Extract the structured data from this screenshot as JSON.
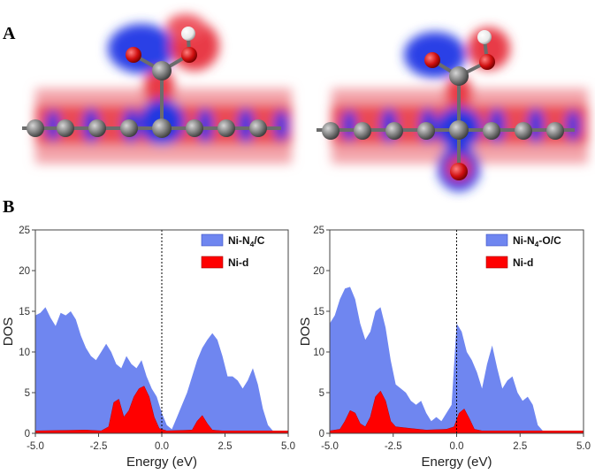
{
  "figure": {
    "panel_a_label": "A",
    "panel_b_label": "B"
  },
  "colors": {
    "tdos": "#6f86f0",
    "ni_d": "#ff0000",
    "depletion": "#e8303a",
    "accumulation": "#1e32d8",
    "atom_c": "#7a7a7a",
    "atom_o": "#d01010",
    "atom_h": "#ffffff"
  },
  "chart_data": [
    {
      "type": "area",
      "legend": [
        "Ni-N4/C",
        "Ni-d"
      ],
      "legend_display": {
        "tdos_main": "Ni-N",
        "tdos_sub": "4",
        "tdos_tail": "/C",
        "ni_d": "Ni-d"
      },
      "xlabel": "Energy (eV)",
      "ylabel": "DOS",
      "xlim": [
        -5,
        5
      ],
      "ylim": [
        0,
        25
      ],
      "xtick_labels": [
        "-5.0",
        "-2.5",
        "0.0",
        "2.5",
        "5.0"
      ],
      "ytick_labels": [
        "0",
        "5",
        "10",
        "15",
        "20",
        "25"
      ],
      "fermi_level": 0.0,
      "series": [
        {
          "name": "Ni-N4/C",
          "points": [
            [
              -5.0,
              14.5
            ],
            [
              -4.8,
              14.8
            ],
            [
              -4.6,
              15.5
            ],
            [
              -4.4,
              14.2
            ],
            [
              -4.2,
              13.2
            ],
            [
              -4.0,
              14.8
            ],
            [
              -3.8,
              14.5
            ],
            [
              -3.6,
              15.0
            ],
            [
              -3.4,
              14.0
            ],
            [
              -3.2,
              12.0
            ],
            [
              -3.0,
              10.5
            ],
            [
              -2.8,
              9.5
            ],
            [
              -2.6,
              9.0
            ],
            [
              -2.4,
              10.0
            ],
            [
              -2.2,
              11.0
            ],
            [
              -2.0,
              10.0
            ],
            [
              -1.8,
              8.5
            ],
            [
              -1.6,
              8.0
            ],
            [
              -1.4,
              9.5
            ],
            [
              -1.2,
              8.5
            ],
            [
              -1.0,
              8.0
            ],
            [
              -0.8,
              9.0
            ],
            [
              -0.6,
              7.0
            ],
            [
              -0.4,
              5.5
            ],
            [
              -0.2,
              4.5
            ],
            [
              0.0,
              2.5
            ],
            [
              0.2,
              1.0
            ],
            [
              0.4,
              0.5
            ],
            [
              0.6,
              2.0
            ],
            [
              0.8,
              3.5
            ],
            [
              1.0,
              5.0
            ],
            [
              1.2,
              7.0
            ],
            [
              1.4,
              9.0
            ],
            [
              1.6,
              10.5
            ],
            [
              1.8,
              11.5
            ],
            [
              2.0,
              12.3
            ],
            [
              2.2,
              11.5
            ],
            [
              2.4,
              9.5
            ],
            [
              2.6,
              7.0
            ],
            [
              2.8,
              7.0
            ],
            [
              3.0,
              6.5
            ],
            [
              3.2,
              5.5
            ],
            [
              3.4,
              6.5
            ],
            [
              3.6,
              8.0
            ],
            [
              3.8,
              6.0
            ],
            [
              4.0,
              3.0
            ],
            [
              4.2,
              1.0
            ],
            [
              4.4,
              0.3
            ],
            [
              4.6,
              0.2
            ],
            [
              5.0,
              0.2
            ]
          ]
        },
        {
          "name": "Ni-d",
          "points": [
            [
              -5.0,
              0.3
            ],
            [
              -3.0,
              0.4
            ],
            [
              -2.4,
              0.3
            ],
            [
              -2.1,
              0.8
            ],
            [
              -1.9,
              3.8
            ],
            [
              -1.7,
              4.2
            ],
            [
              -1.5,
              2.0
            ],
            [
              -1.3,
              2.8
            ],
            [
              -1.1,
              4.5
            ],
            [
              -0.9,
              5.5
            ],
            [
              -0.7,
              5.8
            ],
            [
              -0.5,
              4.5
            ],
            [
              -0.3,
              2.0
            ],
            [
              -0.1,
              0.6
            ],
            [
              0.2,
              0.3
            ],
            [
              1.2,
              0.4
            ],
            [
              1.4,
              1.5
            ],
            [
              1.6,
              2.2
            ],
            [
              1.8,
              1.2
            ],
            [
              2.0,
              0.4
            ],
            [
              2.4,
              0.3
            ],
            [
              5.0,
              0.3
            ]
          ]
        }
      ]
    },
    {
      "type": "area",
      "legend": [
        "Ni-N4-O/C",
        "Ni-d"
      ],
      "legend_display": {
        "tdos_main": "Ni-N",
        "tdos_sub": "4",
        "tdos_tail": "-O/C",
        "ni_d": "Ni-d"
      },
      "xlabel": "Energy (eV)",
      "ylabel": "DOS",
      "xlim": [
        -5,
        5
      ],
      "ylim": [
        0,
        25
      ],
      "xtick_labels": [
        "-5.0",
        "-2.5",
        "0.0",
        "2.5",
        "5.0"
      ],
      "ytick_labels": [
        "0",
        "5",
        "10",
        "15",
        "20",
        "25"
      ],
      "fermi_level": 0.0,
      "series": [
        {
          "name": "Ni-N4-O/C",
          "points": [
            [
              -5.0,
              13.5
            ],
            [
              -4.8,
              14.5
            ],
            [
              -4.6,
              16.5
            ],
            [
              -4.4,
              17.8
            ],
            [
              -4.2,
              18.0
            ],
            [
              -4.0,
              16.5
            ],
            [
              -3.8,
              13.5
            ],
            [
              -3.6,
              11.5
            ],
            [
              -3.4,
              12.5
            ],
            [
              -3.2,
              15.0
            ],
            [
              -3.0,
              15.5
            ],
            [
              -2.8,
              13.0
            ],
            [
              -2.6,
              9.0
            ],
            [
              -2.4,
              6.0
            ],
            [
              -2.2,
              5.5
            ],
            [
              -2.0,
              5.0
            ],
            [
              -1.8,
              4.0
            ],
            [
              -1.6,
              3.5
            ],
            [
              -1.4,
              4.0
            ],
            [
              -1.2,
              2.5
            ],
            [
              -1.0,
              1.5
            ],
            [
              -0.8,
              2.0
            ],
            [
              -0.6,
              1.5
            ],
            [
              -0.4,
              2.5
            ],
            [
              -0.2,
              3.5
            ],
            [
              0.0,
              13.5
            ],
            [
              0.2,
              12.5
            ],
            [
              0.4,
              10.0
            ],
            [
              0.6,
              9.0
            ],
            [
              0.8,
              7.5
            ],
            [
              1.0,
              5.5
            ],
            [
              1.2,
              8.5
            ],
            [
              1.4,
              10.8
            ],
            [
              1.6,
              8.0
            ],
            [
              1.8,
              5.5
            ],
            [
              2.0,
              6.5
            ],
            [
              2.2,
              7.0
            ],
            [
              2.4,
              5.0
            ],
            [
              2.6,
              4.0
            ],
            [
              2.8,
              4.5
            ],
            [
              3.0,
              3.5
            ],
            [
              3.2,
              1.0
            ],
            [
              3.4,
              0.3
            ],
            [
              5.0,
              0.2
            ]
          ]
        },
        {
          "name": "Ni-d",
          "points": [
            [
              -5.0,
              0.3
            ],
            [
              -4.6,
              0.5
            ],
            [
              -4.4,
              1.5
            ],
            [
              -4.2,
              2.8
            ],
            [
              -4.0,
              2.5
            ],
            [
              -3.8,
              1.2
            ],
            [
              -3.6,
              0.8
            ],
            [
              -3.4,
              2.0
            ],
            [
              -3.2,
              4.5
            ],
            [
              -3.0,
              5.2
            ],
            [
              -2.8,
              4.0
            ],
            [
              -2.6,
              1.5
            ],
            [
              -2.4,
              0.8
            ],
            [
              -1.8,
              0.6
            ],
            [
              -1.2,
              0.4
            ],
            [
              -0.4,
              0.5
            ],
            [
              -0.1,
              0.8
            ],
            [
              0.1,
              2.5
            ],
            [
              0.3,
              3.0
            ],
            [
              0.5,
              1.8
            ],
            [
              0.7,
              0.5
            ],
            [
              1.0,
              0.3
            ],
            [
              5.0,
              0.3
            ]
          ]
        }
      ]
    }
  ]
}
